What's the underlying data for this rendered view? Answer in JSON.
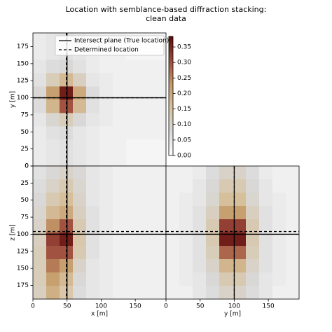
{
  "chart_data": {
    "type": "heatmap",
    "title": "Location with semblance-based diffraction stacking:",
    "subtitle": "clean data",
    "true_location": {
      "label": "Intersect plane (True location)",
      "x": 50,
      "y": 100,
      "z": 100
    },
    "determined_location": {
      "label": "Determined location",
      "x": 49,
      "y": 100,
      "z": 96
    },
    "colorbar": {
      "lim": [
        0,
        0.384
      ],
      "colormap": [
        "#ffffff",
        "#d9d9d9",
        "#d8c3a0",
        "#c49a68",
        "#9e4a3c",
        "#5c0a0a"
      ],
      "ticks": [
        {
          "value": 0,
          "label": "0.00"
        },
        {
          "value": 0.05,
          "label": "0.05"
        },
        {
          "value": 0.1,
          "label": "0.10"
        },
        {
          "value": 0.15,
          "label": "0.15"
        },
        {
          "value": 0.2,
          "label": "0.20"
        },
        {
          "value": 0.25,
          "label": "0.25"
        },
        {
          "value": 0.3,
          "label": "0.30"
        },
        {
          "value": 0.35,
          "label": "0.35"
        }
      ]
    },
    "panels": [
      {
        "h_axis": "x",
        "v_axis": "y",
        "ylabel": "y [m]",
        "xlim": [
          0,
          195
        ],
        "ylim": [
          0,
          195
        ],
        "y_inverted": false,
        "yticks": [
          0,
          25,
          50,
          75,
          100,
          125,
          150,
          175
        ],
        "values": [
          [
            0.04,
            0.05,
            0.06,
            0.05,
            0.04,
            0.03,
            0.03,
            0.02,
            0.02,
            0.02
          ],
          [
            0.04,
            0.05,
            0.06,
            0.05,
            0.04,
            0.03,
            0.03,
            0.02,
            0.02,
            0.02
          ],
          [
            0.04,
            0.06,
            0.07,
            0.05,
            0.04,
            0.03,
            0.03,
            0.03,
            0.03,
            0.03
          ],
          [
            0.05,
            0.09,
            0.12,
            0.08,
            0.05,
            0.04,
            0.03,
            0.03,
            0.03,
            0.03
          ],
          [
            0.07,
            0.18,
            0.3,
            0.17,
            0.06,
            0.04,
            0.03,
            0.03,
            0.03,
            0.03
          ],
          [
            0.08,
            0.22,
            0.36,
            0.2,
            0.07,
            0.04,
            0.03,
            0.03,
            0.03,
            0.03
          ],
          [
            0.06,
            0.12,
            0.17,
            0.11,
            0.05,
            0.04,
            0.03,
            0.03,
            0.03,
            0.03
          ],
          [
            0.05,
            0.07,
            0.08,
            0.06,
            0.04,
            0.03,
            0.03,
            0.03,
            0.03,
            0.03
          ],
          [
            0.04,
            0.05,
            0.06,
            0.05,
            0.04,
            0.03,
            0.03,
            0.02,
            0.02,
            0.02
          ],
          [
            0.04,
            0.05,
            0.06,
            0.05,
            0.04,
            0.03,
            0.03,
            0.02,
            0.02,
            0.02
          ]
        ]
      },
      {
        "h_axis": "x",
        "v_axis": "z",
        "xlabel": "x [m]",
        "ylabel": "z [m]",
        "xlim": [
          0,
          195
        ],
        "ylim": [
          0,
          195
        ],
        "y_inverted": true,
        "xticks": [
          0,
          50,
          100,
          150
        ],
        "yticks": [
          0,
          25,
          50,
          75,
          100,
          125,
          150,
          175
        ],
        "values": [
          [
            0.06,
            0.08,
            0.1,
            0.08,
            0.05,
            0.04,
            0.03,
            0.03,
            0.03,
            0.03
          ],
          [
            0.07,
            0.1,
            0.13,
            0.09,
            0.05,
            0.04,
            0.03,
            0.03,
            0.03,
            0.03
          ],
          [
            0.08,
            0.13,
            0.16,
            0.1,
            0.05,
            0.04,
            0.03,
            0.03,
            0.03,
            0.03
          ],
          [
            0.09,
            0.17,
            0.2,
            0.11,
            0.06,
            0.04,
            0.03,
            0.03,
            0.03,
            0.03
          ],
          [
            0.1,
            0.24,
            0.3,
            0.13,
            0.06,
            0.04,
            0.03,
            0.03,
            0.03,
            0.03
          ],
          [
            0.11,
            0.32,
            0.36,
            0.14,
            0.06,
            0.04,
            0.03,
            0.03,
            0.03,
            0.03
          ],
          [
            0.12,
            0.3,
            0.3,
            0.13,
            0.06,
            0.04,
            0.03,
            0.03,
            0.03,
            0.03
          ],
          [
            0.12,
            0.26,
            0.22,
            0.1,
            0.05,
            0.04,
            0.03,
            0.03,
            0.03,
            0.03
          ],
          [
            0.12,
            0.22,
            0.17,
            0.08,
            0.05,
            0.04,
            0.03,
            0.03,
            0.03,
            0.03
          ],
          [
            0.11,
            0.19,
            0.14,
            0.07,
            0.05,
            0.04,
            0.03,
            0.03,
            0.03,
            0.03
          ]
        ]
      },
      {
        "h_axis": "y",
        "v_axis": "z",
        "xlabel": "y [m]",
        "xlim": [
          0,
          195
        ],
        "ylim": [
          0,
          195
        ],
        "y_inverted": true,
        "xticks": [
          0,
          50,
          100,
          150
        ],
        "values": [
          [
            0.03,
            0.03,
            0.04,
            0.07,
            0.1,
            0.1,
            0.07,
            0.04,
            0.03,
            0.03
          ],
          [
            0.03,
            0.03,
            0.05,
            0.08,
            0.13,
            0.13,
            0.08,
            0.05,
            0.03,
            0.03
          ],
          [
            0.03,
            0.04,
            0.05,
            0.09,
            0.16,
            0.16,
            0.09,
            0.05,
            0.04,
            0.03
          ],
          [
            0.03,
            0.04,
            0.06,
            0.11,
            0.22,
            0.22,
            0.11,
            0.06,
            0.04,
            0.03
          ],
          [
            0.03,
            0.04,
            0.06,
            0.13,
            0.32,
            0.32,
            0.13,
            0.06,
            0.04,
            0.03
          ],
          [
            0.03,
            0.04,
            0.06,
            0.13,
            0.36,
            0.36,
            0.13,
            0.06,
            0.04,
            0.03
          ],
          [
            0.03,
            0.04,
            0.06,
            0.12,
            0.28,
            0.28,
            0.12,
            0.06,
            0.04,
            0.03
          ],
          [
            0.03,
            0.04,
            0.06,
            0.1,
            0.18,
            0.18,
            0.1,
            0.06,
            0.04,
            0.03
          ],
          [
            0.03,
            0.04,
            0.05,
            0.08,
            0.13,
            0.13,
            0.08,
            0.05,
            0.04,
            0.03
          ],
          [
            0.03,
            0.03,
            0.05,
            0.07,
            0.1,
            0.1,
            0.07,
            0.05,
            0.03,
            0.03
          ]
        ]
      }
    ]
  }
}
